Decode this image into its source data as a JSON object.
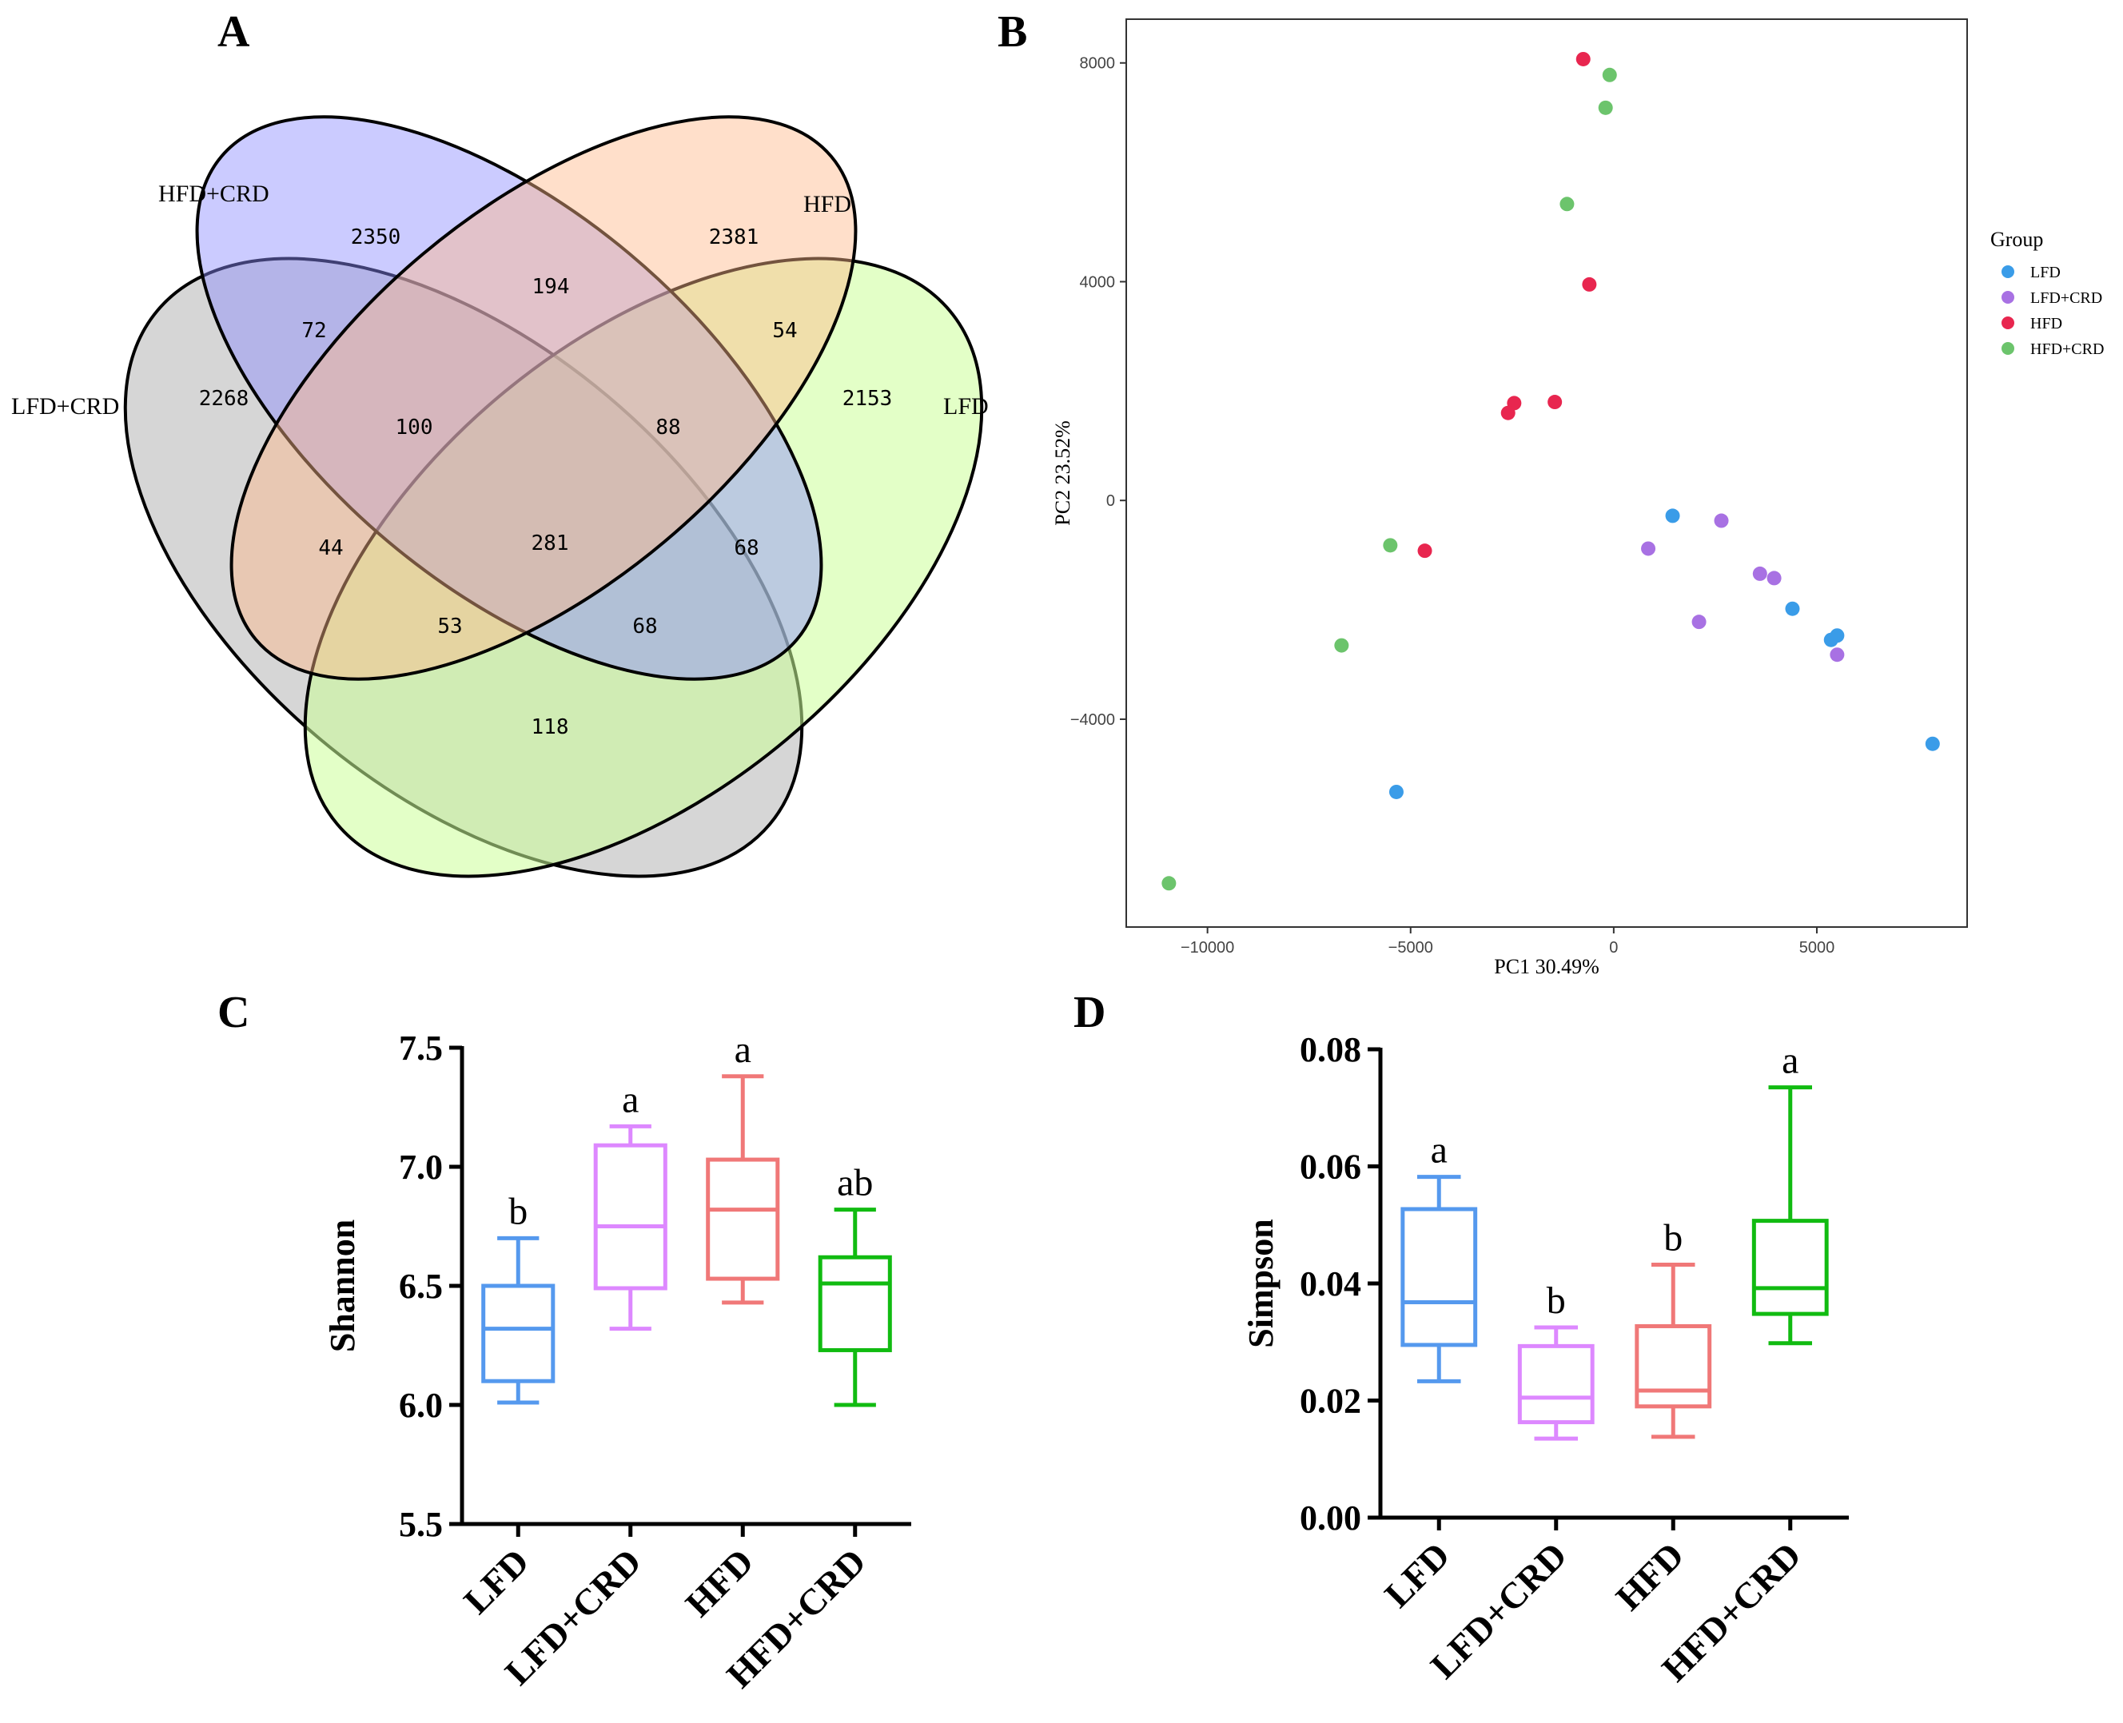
{
  "panel_letters": {
    "a": "A",
    "b": "B",
    "c": "C",
    "d": "D"
  },
  "chart_data": [
    {
      "panel": "A",
      "type": "venn",
      "sets": [
        "HFD+CRD",
        "HFD",
        "LFD+CRD",
        "LFD"
      ],
      "colors": {
        "HFD+CRD": "#8c8cff",
        "HFD": "#ffb88a",
        "LFD+CRD": "#b5b5b5",
        "LFD": "#ccff99"
      },
      "regions": {
        "only_hfdcrd": "2350",
        "only_hfd": "2381",
        "only_lfdcrd": "2268",
        "only_lfd": "2153",
        "hfdcrd_hfd": "194",
        "hfdcrd_lfdcrd": "72",
        "hfd_lfd": "54",
        "hfdcrd_hfd_lfdcrd": "100",
        "hfdcrd_hfd_lfd": "88",
        "all_four": "281",
        "hfd_lfdcrd": "44",
        "hfdcrd_lfd": "68",
        "hfd_lfdcrd_lfd": "53",
        "hfdcrd_lfdcrd_lfd": "68",
        "lfdcrd_lfd": "118"
      }
    },
    {
      "panel": "B",
      "type": "scatter",
      "xlabel": "PC1 30.49%",
      "ylabel": "PC2 23.52%",
      "xlim": [
        -12000,
        8700
      ],
      "ylim": [
        -7800,
        8800
      ],
      "xticks": [
        -10000,
        -5000,
        0,
        5000
      ],
      "xtick_labels": [
        "−10000",
        "−5000",
        "0",
        "5000"
      ],
      "yticks": [
        -4000,
        0,
        4000,
        8000
      ],
      "ytick_labels": [
        "−4000",
        "0",
        "4000",
        "8000"
      ],
      "legend_title": "Group",
      "series": [
        {
          "name": "LFD",
          "color": "#3a9ce8",
          "points": [
            [
              1450,
              -280
            ],
            [
              4400,
              -1980
            ],
            [
              5350,
              -2550
            ],
            [
              5500,
              -2470
            ],
            [
              7850,
              -4450
            ],
            [
              -5350,
              -5330
            ]
          ]
        },
        {
          "name": "LFD+CRD",
          "color": "#a871e3",
          "points": [
            [
              2650,
              -370
            ],
            [
              850,
              -880
            ],
            [
              3600,
              -1340
            ],
            [
              3950,
              -1420
            ],
            [
              2100,
              -2220
            ],
            [
              5500,
              -2820
            ]
          ]
        },
        {
          "name": "HFD",
          "color": "#e8264f",
          "points": [
            [
              -750,
              8070
            ],
            [
              -600,
              3950
            ],
            [
              -2450,
              1780
            ],
            [
              -2600,
              1600
            ],
            [
              -1450,
              1800
            ],
            [
              -4650,
              -920
            ]
          ]
        },
        {
          "name": "HFD+CRD",
          "color": "#6cc46c",
          "points": [
            [
              -100,
              7780
            ],
            [
              -200,
              7180
            ],
            [
              -1150,
              5420
            ],
            [
              -5500,
              -820
            ],
            [
              -6700,
              -2650
            ],
            [
              -10950,
              -7000
            ]
          ]
        }
      ]
    },
    {
      "panel": "C",
      "type": "boxplot",
      "ylabel": "Shannon",
      "ylim": [
        5.5,
        7.5
      ],
      "yticks": [
        "5.5",
        "6.0",
        "6.5",
        "7.0",
        "7.5"
      ],
      "categories": [
        "LFD",
        "LFD+CRD",
        "HFD",
        "HFD+CRD"
      ],
      "colors": [
        "#5599ee",
        "#dd88ff",
        "#f07878",
        "#11bb11"
      ],
      "boxes": [
        {
          "min": 6.01,
          "q1": 6.1,
          "median": 6.32,
          "q3": 6.5,
          "max": 6.7
        },
        {
          "min": 6.32,
          "q1": 6.49,
          "median": 6.75,
          "q3": 7.09,
          "max": 7.17
        },
        {
          "min": 6.43,
          "q1": 6.53,
          "median": 6.82,
          "q3": 7.03,
          "max": 7.38
        },
        {
          "min": 6.0,
          "q1": 6.23,
          "median": 6.51,
          "q3": 6.62,
          "max": 6.82
        }
      ],
      "letters": [
        "b",
        "a",
        "a",
        "ab"
      ]
    },
    {
      "panel": "D",
      "type": "boxplot",
      "ylabel": "Simpson",
      "ylim": [
        0,
        0.08
      ],
      "yticks": [
        "0.00",
        "0.02",
        "0.04",
        "0.06",
        "0.08"
      ],
      "categories": [
        "LFD",
        "LFD+CRD",
        "HFD",
        "HFD+CRD"
      ],
      "colors": [
        "#5599ee",
        "#dd88ff",
        "#f07878",
        "#11bb11"
      ],
      "boxes": [
        {
          "min": 0.0233,
          "q1": 0.0295,
          "median": 0.0368,
          "q3": 0.0527,
          "max": 0.0582
        },
        {
          "min": 0.0135,
          "q1": 0.0163,
          "median": 0.0205,
          "q3": 0.0293,
          "max": 0.0325
        },
        {
          "min": 0.0138,
          "q1": 0.019,
          "median": 0.0217,
          "q3": 0.0327,
          "max": 0.0432
        },
        {
          "min": 0.0298,
          "q1": 0.0348,
          "median": 0.0392,
          "q3": 0.0507,
          "max": 0.0735
        }
      ],
      "letters": [
        "a",
        "b",
        "b",
        "a"
      ]
    }
  ]
}
